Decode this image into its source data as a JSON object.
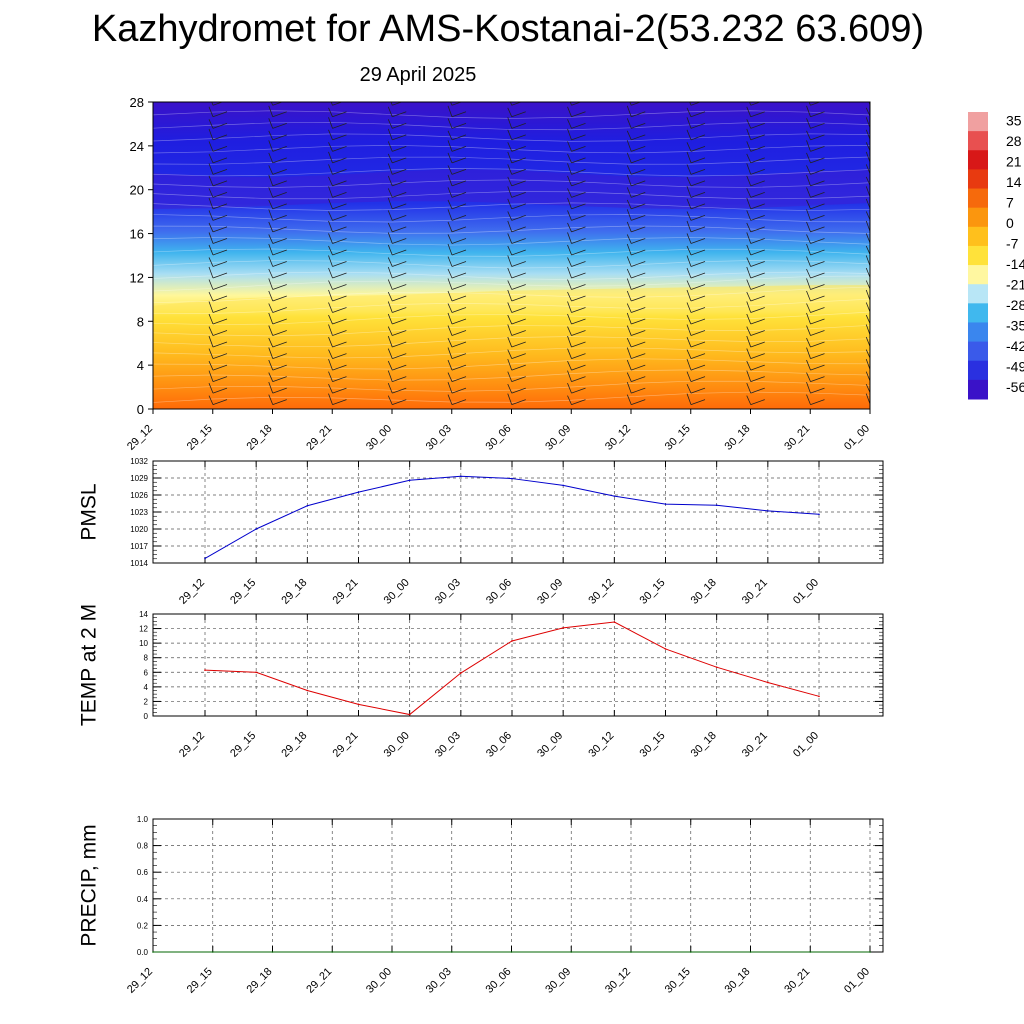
{
  "title": "Kazhydromet for AMS-Kostanai-2(53.232 63.609)",
  "date": "29 April 2025",
  "chart_data": [
    {
      "type": "heatmap",
      "title": "",
      "x_categories": [
        "29_12",
        "29_15",
        "29_18",
        "29_21",
        "30_00",
        "30_03",
        "30_06",
        "30_09",
        "30_12",
        "30_15",
        "30_18",
        "30_21",
        "01_00"
      ],
      "y_ticks": [
        0,
        4,
        8,
        12,
        16,
        20,
        24,
        28
      ],
      "ylim": [
        0,
        28
      ],
      "colorbar_ticks": [
        "35",
        "28",
        "21",
        "14",
        "7",
        "0",
        "-7",
        "-14",
        "-21",
        "-28",
        "-35",
        "-42",
        "-49",
        "-56"
      ],
      "freezing_level": [
        9.4,
        10.0,
        10.2,
        10.3,
        10.4,
        10.6,
        10.8,
        10.9,
        11.0,
        11.1,
        11.2,
        11.3,
        11.3
      ],
      "legend_position": "right"
    },
    {
      "type": "line",
      "ylabel": "PMSL",
      "x": [
        "29_12",
        "29_15",
        "29_18",
        "29_21",
        "30_00",
        "30_03",
        "30_06",
        "30_09",
        "30_12",
        "30_15",
        "30_18",
        "30_21",
        "01_00"
      ],
      "values": [
        1014.8,
        1020.0,
        1024.1,
        1026.5,
        1028.6,
        1029.3,
        1028.9,
        1027.7,
        1025.8,
        1024.4,
        1024.2,
        1023.2,
        1022.6
      ],
      "ylim": [
        1014,
        1032
      ],
      "y_ticks": [
        1014,
        1017,
        1020,
        1023,
        1026,
        1029,
        1032
      ],
      "color": "#0000cc",
      "grid": true
    },
    {
      "type": "line",
      "ylabel": "TEMP at 2 M",
      "x": [
        "29_12",
        "29_15",
        "29_18",
        "29_21",
        "30_00",
        "30_03",
        "30_06",
        "30_09",
        "30_12",
        "30_15",
        "30_18",
        "30_21",
        "01_00"
      ],
      "values": [
        6.3,
        6.0,
        3.5,
        1.6,
        0.2,
        5.9,
        10.3,
        12.1,
        12.9,
        9.2,
        6.7,
        4.6,
        2.7
      ],
      "ylim": [
        0,
        14
      ],
      "y_ticks": [
        0,
        2,
        4,
        6,
        8,
        10,
        12,
        14
      ],
      "color": "#dd0000",
      "grid": true
    },
    {
      "type": "line",
      "ylabel": "PRECIP, mm",
      "x": [
        "29_12",
        "29_15",
        "29_18",
        "29_21",
        "30_00",
        "30_03",
        "30_06",
        "30_09",
        "30_12",
        "30_15",
        "30_18",
        "30_21",
        "01_00"
      ],
      "values": [
        0,
        0,
        0,
        0,
        0,
        0,
        0,
        0,
        0,
        0,
        0,
        0,
        0
      ],
      "ylim": [
        0,
        1.0
      ],
      "y_ticks": [
        "0.0",
        "0.2",
        "0.4",
        "0.6",
        "0.8",
        "1.0"
      ],
      "color": "#006400",
      "grid": true
    }
  ]
}
